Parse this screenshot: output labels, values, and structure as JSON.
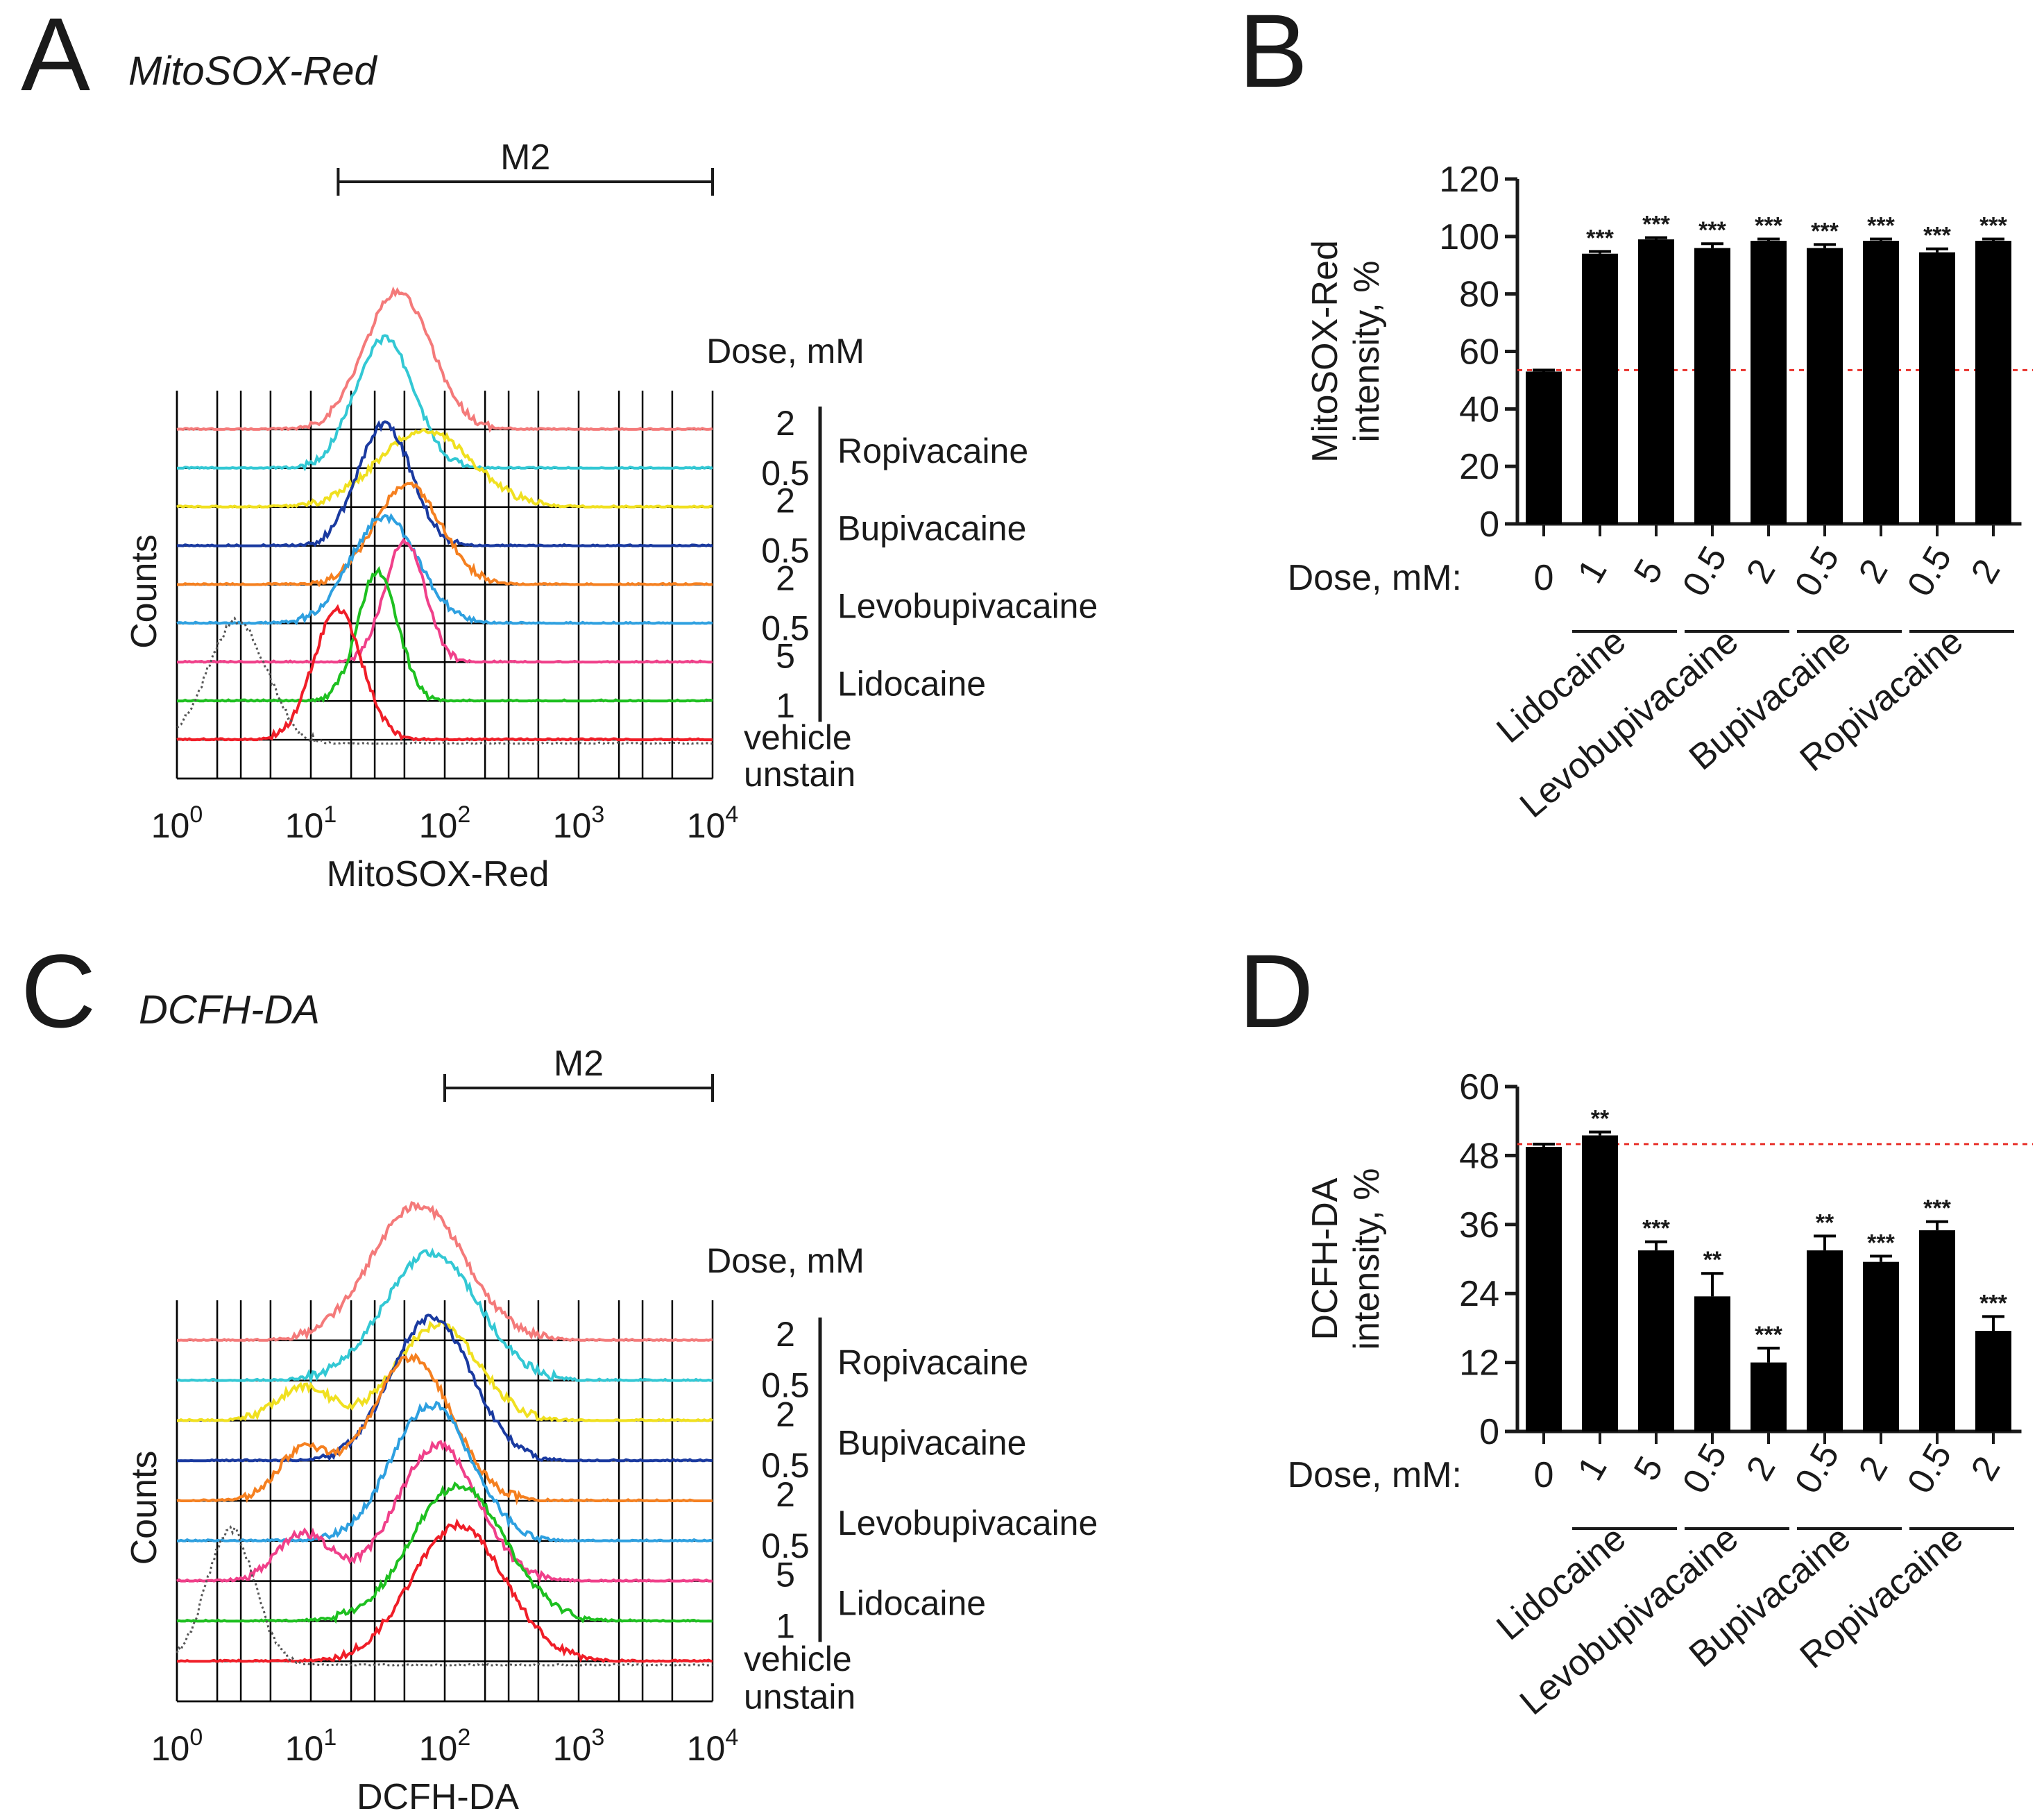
{
  "chart_data": [
    {
      "panel": "A",
      "type": "histogram",
      "title": "MitoSOX-Red",
      "gate_label": "M2",
      "gate_range": [
        16,
        10000
      ],
      "xlabel": "MitoSOX-Red",
      "ylabel": "Counts",
      "x_scale": "log",
      "xlim": [
        1,
        10000
      ],
      "x_ticks": [
        "0",
        "1",
        "2",
        "3",
        "4"
      ],
      "x_tick_base": "10",
      "dose_header": "Dose, mM",
      "groups": [
        {
          "name": "Ropivacaine",
          "doses": [
            "2",
            "0.5"
          ]
        },
        {
          "name": "Bupivacaine",
          "doses": [
            "2",
            "0.5"
          ]
        },
        {
          "name": "Levobupivacaine",
          "doses": [
            "2",
            "0.5"
          ]
        },
        {
          "name": "Lidocaine",
          "doses": [
            "5",
            "1"
          ]
        }
      ],
      "bottom_labels": [
        "vehicle",
        "unstain"
      ],
      "series": [
        {
          "name": "Ropivacaine 2 mM",
          "color": "#f47a7a",
          "peak_log10": 1.65,
          "width": 0.25,
          "height": 0.9
        },
        {
          "name": "Ropivacaine 0.5 mM",
          "color": "#33c8d4",
          "peak_log10": 1.55,
          "width": 0.22,
          "height": 0.85
        },
        {
          "name": "Bupivacaine 2 mM",
          "color": "#f0e020",
          "peak_log10": 1.85,
          "width": 0.35,
          "height": 0.5
        },
        {
          "name": "Bupivacaine 0.5 mM",
          "color": "#1a3aa0",
          "peak_log10": 1.55,
          "width": 0.2,
          "height": 0.8
        },
        {
          "name": "Levobupivacaine 2 mM",
          "color": "#f58020",
          "peak_log10": 1.72,
          "width": 0.25,
          "height": 0.65
        },
        {
          "name": "Levobupivacaine 0.5 mM",
          "color": "#2ea0e0",
          "peak_log10": 1.55,
          "width": 0.25,
          "height": 0.7
        },
        {
          "name": "Lidocaine 5 mM",
          "color": "#f0408a",
          "peak_log10": 1.7,
          "width": 0.15,
          "height": 0.8
        },
        {
          "name": "Lidocaine 1 mM",
          "color": "#1ec020",
          "peak_log10": 1.5,
          "width": 0.15,
          "height": 0.85
        },
        {
          "name": "vehicle",
          "color": "#f01e28",
          "peak_log10": 1.2,
          "width": 0.18,
          "height": 0.85
        },
        {
          "name": "unstain",
          "color": "#555555",
          "peak_log10": 0.45,
          "width": 0.22,
          "height": 0.8,
          "dotted": true
        }
      ]
    },
    {
      "panel": "B",
      "type": "bar",
      "ylabel_lines": [
        "MitoSOX-Red",
        "intensity, %"
      ],
      "ylim": [
        0,
        120
      ],
      "y_ticks": [
        0,
        20,
        40,
        60,
        80,
        100,
        120
      ],
      "dose_axis_label": "Dose, mM:",
      "categories": [
        "0",
        "1",
        "5",
        "0.5",
        "2",
        "0.5",
        "2",
        "0.5",
        "2"
      ],
      "values": [
        53,
        94,
        99,
        96,
        98.5,
        96,
        98.5,
        94.5,
        98.5
      ],
      "errors": [
        0.5,
        0.8,
        0.6,
        1.5,
        0.6,
        1.2,
        0.6,
        1.2,
        0.6
      ],
      "significance": [
        "",
        "***",
        "***",
        "***",
        "***",
        "***",
        "***",
        "***",
        "***"
      ],
      "reference_line": 53.5,
      "groups": [
        {
          "name": "Lidocaine",
          "span": [
            1,
            2
          ]
        },
        {
          "name": "Levobupivacaine",
          "span": [
            3,
            4
          ]
        },
        {
          "name": "Bupivacaine",
          "span": [
            5,
            6
          ]
        },
        {
          "name": "Ropivacaine",
          "span": [
            7,
            8
          ]
        }
      ]
    },
    {
      "panel": "C",
      "type": "histogram",
      "title": "DCFH-DA",
      "gate_label": "M2",
      "gate_range": [
        100,
        10000
      ],
      "xlabel": "DCFH-DA",
      "ylabel": "Counts",
      "x_scale": "log",
      "xlim": [
        1,
        10000
      ],
      "x_ticks": [
        "0",
        "1",
        "2",
        "3",
        "4"
      ],
      "x_tick_base": "10",
      "dose_header": "Dose, mM",
      "groups": [
        {
          "name": "Ropivacaine",
          "doses": [
            "2",
            "0.5"
          ]
        },
        {
          "name": "Bupivacaine",
          "doses": [
            "2",
            "0.5"
          ]
        },
        {
          "name": "Levobupivacaine",
          "doses": [
            "2",
            "0.5"
          ]
        },
        {
          "name": "Lidocaine",
          "doses": [
            "5",
            "1"
          ]
        }
      ],
      "bottom_labels": [
        "vehicle",
        "unstain"
      ],
      "series": [
        {
          "name": "Ropivacaine 2 mM",
          "color": "#f47a7a",
          "peak_log10": 1.8,
          "width": 0.35,
          "height": 0.85
        },
        {
          "name": "Ropivacaine 0.5 mM",
          "color": "#33c8d4",
          "peak_log10": 1.9,
          "width": 0.35,
          "height": 0.8
        },
        {
          "name": "Bupivacaine 2 mM",
          "color": "#f0e020",
          "peak_log10": 1.95,
          "width": 0.3,
          "height": 0.6,
          "secondary_log10": 0.95
        },
        {
          "name": "Bupivacaine 0.5 mM",
          "color": "#1a3aa0",
          "peak_log10": 1.9,
          "width": 0.3,
          "height": 0.9
        },
        {
          "name": "Levobupivacaine 2 mM",
          "color": "#f58020",
          "peak_log10": 1.75,
          "width": 0.3,
          "height": 0.9,
          "secondary_log10": 0.95
        },
        {
          "name": "Levobupivacaine 0.5 mM",
          "color": "#2ea0e0",
          "peak_log10": 1.9,
          "width": 0.3,
          "height": 0.85
        },
        {
          "name": "Lidocaine 5 mM",
          "color": "#f0408a",
          "peak_log10": 1.95,
          "width": 0.3,
          "height": 0.85,
          "secondary_log10": 0.95
        },
        {
          "name": "Lidocaine 1 mM",
          "color": "#1ec020",
          "peak_log10": 2.1,
          "width": 0.35,
          "height": 0.85
        },
        {
          "name": "vehicle",
          "color": "#f01e28",
          "peak_log10": 2.1,
          "width": 0.35,
          "height": 0.85
        },
        {
          "name": "unstain",
          "color": "#555555",
          "peak_log10": 0.4,
          "width": 0.18,
          "height": 0.85,
          "dotted": true
        }
      ]
    },
    {
      "panel": "D",
      "type": "bar",
      "ylabel_lines": [
        "DCFH-DA",
        "intensity, %"
      ],
      "ylim": [
        0,
        60
      ],
      "y_ticks": [
        0,
        12,
        24,
        36,
        48,
        60
      ],
      "dose_axis_label": "Dose, mM:",
      "categories": [
        "0",
        "1",
        "5",
        "0.5",
        "2",
        "0.5",
        "2",
        "0.5",
        "2"
      ],
      "values": [
        49.5,
        51.5,
        31.5,
        23.5,
        12,
        31.5,
        29.5,
        35,
        17.5
      ],
      "errors": [
        0.5,
        0.6,
        1.5,
        4,
        2.5,
        2.5,
        1,
        1.5,
        2.5
      ],
      "significance": [
        "",
        "**",
        "***",
        "**",
        "***",
        "**",
        "***",
        "***",
        "***"
      ],
      "reference_line": 50,
      "groups": [
        {
          "name": "Lidocaine",
          "span": [
            1,
            2
          ]
        },
        {
          "name": "Levobupivacaine",
          "span": [
            3,
            4
          ]
        },
        {
          "name": "Bupivacaine",
          "span": [
            5,
            6
          ]
        },
        {
          "name": "Ropivacaine",
          "span": [
            7,
            8
          ]
        }
      ]
    }
  ]
}
